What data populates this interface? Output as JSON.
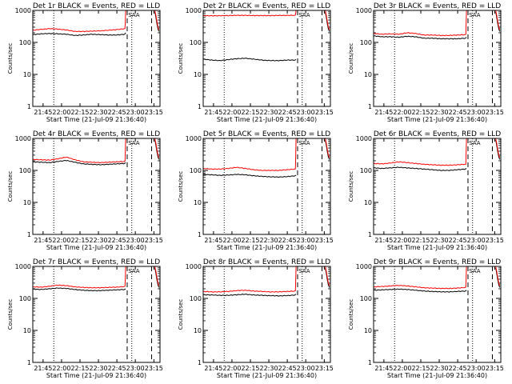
{
  "chart_data": [
    {
      "type": "line",
      "title": "Det 1r BLACK = Events, RED = LLD",
      "xlabel": "Start Time (21-Jul-09 21:36:40)",
      "ylabel": "Counts/sec",
      "yscale": "log",
      "ylim": [
        1,
        1000
      ],
      "x_tick_labels": [
        "21:45",
        "22:00",
        "22:15",
        "22:30",
        "22:45",
        "23:00",
        "23:15"
      ],
      "y_tick_labels": [
        "1",
        "10",
        "100",
        "1000"
      ],
      "markers": [
        "SAA"
      ],
      "series": [
        {
          "color": "#000000",
          "values": [
            175,
            185,
            190,
            185,
            180,
            165,
            170,
            180,
            175,
            170,
            170,
            180,
            200
          ]
        },
        {
          "color": "#ff0000",
          "values": [
            240,
            255,
            270,
            260,
            245,
            220,
            220,
            225,
            230,
            240,
            250,
            270,
            1000
          ]
        }
      ]
    },
    {
      "type": "line",
      "title": "Det 2r BLACK = Events, RED = LLD",
      "xlabel": "Start Time (21-Jul-09 21:36:40)",
      "ylabel": "Counts/sec",
      "yscale": "log",
      "ylim": [
        1,
        1000
      ],
      "x_tick_labels": [
        "21:45",
        "22:00",
        "22:15",
        "22:30",
        "22:45",
        "23:00",
        "23:15"
      ],
      "y_tick_labels": [
        "1",
        "10",
        "100",
        "1000"
      ],
      "markers": [
        "SAA"
      ],
      "series": [
        {
          "color": "#000000",
          "values": [
            30,
            28,
            27,
            29,
            31,
            32,
            30,
            28,
            27,
            27,
            28,
            28,
            29
          ]
        },
        {
          "color": "#ff0000",
          "values": [
            680,
            680,
            680,
            690,
            700,
            700,
            690,
            690,
            690,
            695,
            700,
            700,
            1000
          ]
        }
      ]
    },
    {
      "type": "line",
      "title": "Det 3r BLACK = Events, RED = LLD",
      "xlabel": "Start Time (21-Jul-09 21:36:40)",
      "ylabel": "Counts/sec",
      "yscale": "log",
      "ylim": [
        1,
        1000
      ],
      "x_tick_labels": [
        "21:45",
        "22:00",
        "22:15",
        "22:30",
        "22:45",
        "23:00",
        "23:15"
      ],
      "y_tick_labels": [
        "1",
        "10",
        "100",
        "1000"
      ],
      "markers": [
        "SAA"
      ],
      "series": [
        {
          "color": "#000000",
          "values": [
            160,
            150,
            150,
            145,
            155,
            150,
            135,
            135,
            130,
            130,
            130,
            135,
            145
          ]
        },
        {
          "color": "#ff0000",
          "values": [
            190,
            180,
            185,
            180,
            200,
            190,
            170,
            170,
            165,
            165,
            170,
            175,
            1000
          ]
        }
      ]
    },
    {
      "type": "line",
      "title": "Det 4r BLACK = Events, RED = LLD",
      "xlabel": "Start Time (21-Jul-09 21:36:40)",
      "ylabel": "Counts/sec",
      "yscale": "log",
      "ylim": [
        1,
        1000
      ],
      "x_tick_labels": [
        "21:45",
        "22:00",
        "22:15",
        "22:30",
        "22:45",
        "23:00",
        "23:15"
      ],
      "y_tick_labels": [
        "1",
        "10",
        "100",
        "1000"
      ],
      "markers": [
        "SAA"
      ],
      "series": [
        {
          "color": "#000000",
          "values": [
            185,
            180,
            175,
            190,
            205,
            180,
            160,
            155,
            150,
            155,
            160,
            165,
            175
          ]
        },
        {
          "color": "#ff0000",
          "values": [
            220,
            215,
            210,
            230,
            260,
            215,
            185,
            180,
            175,
            180,
            185,
            190,
            1000
          ]
        }
      ]
    },
    {
      "type": "line",
      "title": "Det 5r BLACK = Events, RED = LLD",
      "xlabel": "Start Time (21-Jul-09 21:36:40)",
      "ylabel": "Counts/sec",
      "yscale": "log",
      "ylim": [
        1,
        1000
      ],
      "x_tick_labels": [
        "21:45",
        "22:00",
        "22:15",
        "22:30",
        "22:45",
        "23:00",
        "23:15"
      ],
      "y_tick_labels": [
        "1",
        "10",
        "100",
        "1000"
      ],
      "markers": [
        "SAA"
      ],
      "series": [
        {
          "color": "#000000",
          "values": [
            75,
            73,
            70,
            72,
            75,
            73,
            68,
            65,
            63,
            62,
            64,
            68,
            70
          ]
        },
        {
          "color": "#ff0000",
          "values": [
            115,
            110,
            110,
            115,
            125,
            115,
            105,
            100,
            100,
            100,
            105,
            110,
            1000
          ]
        }
      ]
    },
    {
      "type": "line",
      "title": "Det 6r BLACK = Events, RED = LLD",
      "xlabel": "Start Time (21-Jul-09 21:36:40)",
      "ylabel": "Counts/sec",
      "yscale": "log",
      "ylim": [
        1,
        1000
      ],
      "x_tick_labels": [
        "21:45",
        "22:00",
        "22:15",
        "22:30",
        "22:45",
        "23:00",
        "23:15"
      ],
      "y_tick_labels": [
        "1",
        "10",
        "100",
        "1000"
      ],
      "markers": [
        "SAA"
      ],
      "series": [
        {
          "color": "#000000",
          "values": [
            120,
            115,
            120,
            125,
            120,
            115,
            110,
            105,
            100,
            100,
            105,
            110,
            115
          ]
        },
        {
          "color": "#ff0000",
          "values": [
            165,
            160,
            170,
            185,
            175,
            165,
            155,
            150,
            145,
            145,
            150,
            155,
            1000
          ]
        }
      ]
    },
    {
      "type": "line",
      "title": "Det 7r BLACK = Events, RED = LLD",
      "xlabel": "Start Time (21-Jul-09 21:36:40)",
      "ylabel": "Counts/sec",
      "yscale": "log",
      "ylim": [
        1,
        1000
      ],
      "x_tick_labels": [
        "21:45",
        "22:00",
        "22:15",
        "22:30",
        "22:45",
        "23:00",
        "23:15"
      ],
      "y_tick_labels": [
        "1",
        "10",
        "100",
        "1000"
      ],
      "markers": [
        "SAA"
      ],
      "series": [
        {
          "color": "#000000",
          "values": [
            195,
            190,
            200,
            210,
            205,
            190,
            180,
            175,
            175,
            180,
            185,
            190,
            200
          ]
        },
        {
          "color": "#ff0000",
          "values": [
            230,
            225,
            240,
            260,
            250,
            230,
            220,
            215,
            215,
            220,
            225,
            235,
            1000
          ]
        }
      ]
    },
    {
      "type": "line",
      "title": "Det 8r BLACK = Events, RED = LLD",
      "xlabel": "Start Time (21-Jul-09 21:36:40)",
      "ylabel": "Counts/sec",
      "yscale": "log",
      "ylim": [
        1,
        1000
      ],
      "x_tick_labels": [
        "21:45",
        "22:00",
        "22:15",
        "22:30",
        "22:45",
        "23:00",
        "23:15"
      ],
      "y_tick_labels": [
        "1",
        "10",
        "100",
        "1000"
      ],
      "markers": [
        "SAA"
      ],
      "series": [
        {
          "color": "#000000",
          "values": [
            130,
            128,
            125,
            125,
            130,
            135,
            128,
            125,
            122,
            120,
            122,
            128,
            135
          ]
        },
        {
          "color": "#ff0000",
          "values": [
            165,
            160,
            160,
            165,
            175,
            180,
            170,
            165,
            160,
            160,
            165,
            170,
            1000
          ]
        }
      ]
    },
    {
      "type": "line",
      "title": "Det 9r BLACK = Events, RED = LLD",
      "xlabel": "Start Time (21-Jul-09 21:36:40)",
      "ylabel": "Counts/sec",
      "yscale": "log",
      "ylim": [
        1,
        1000
      ],
      "x_tick_labels": [
        "21:45",
        "22:00",
        "22:15",
        "22:30",
        "22:45",
        "23:00",
        "23:15"
      ],
      "y_tick_labels": [
        "1",
        "10",
        "100",
        "1000"
      ],
      "markers": [
        "SAA"
      ],
      "series": [
        {
          "color": "#000000",
          "values": [
            180,
            185,
            190,
            195,
            190,
            180,
            170,
            165,
            160,
            160,
            165,
            170,
            180
          ]
        },
        {
          "color": "#ff0000",
          "values": [
            230,
            235,
            245,
            255,
            245,
            230,
            215,
            210,
            205,
            205,
            210,
            220,
            1000
          ]
        }
      ]
    }
  ]
}
